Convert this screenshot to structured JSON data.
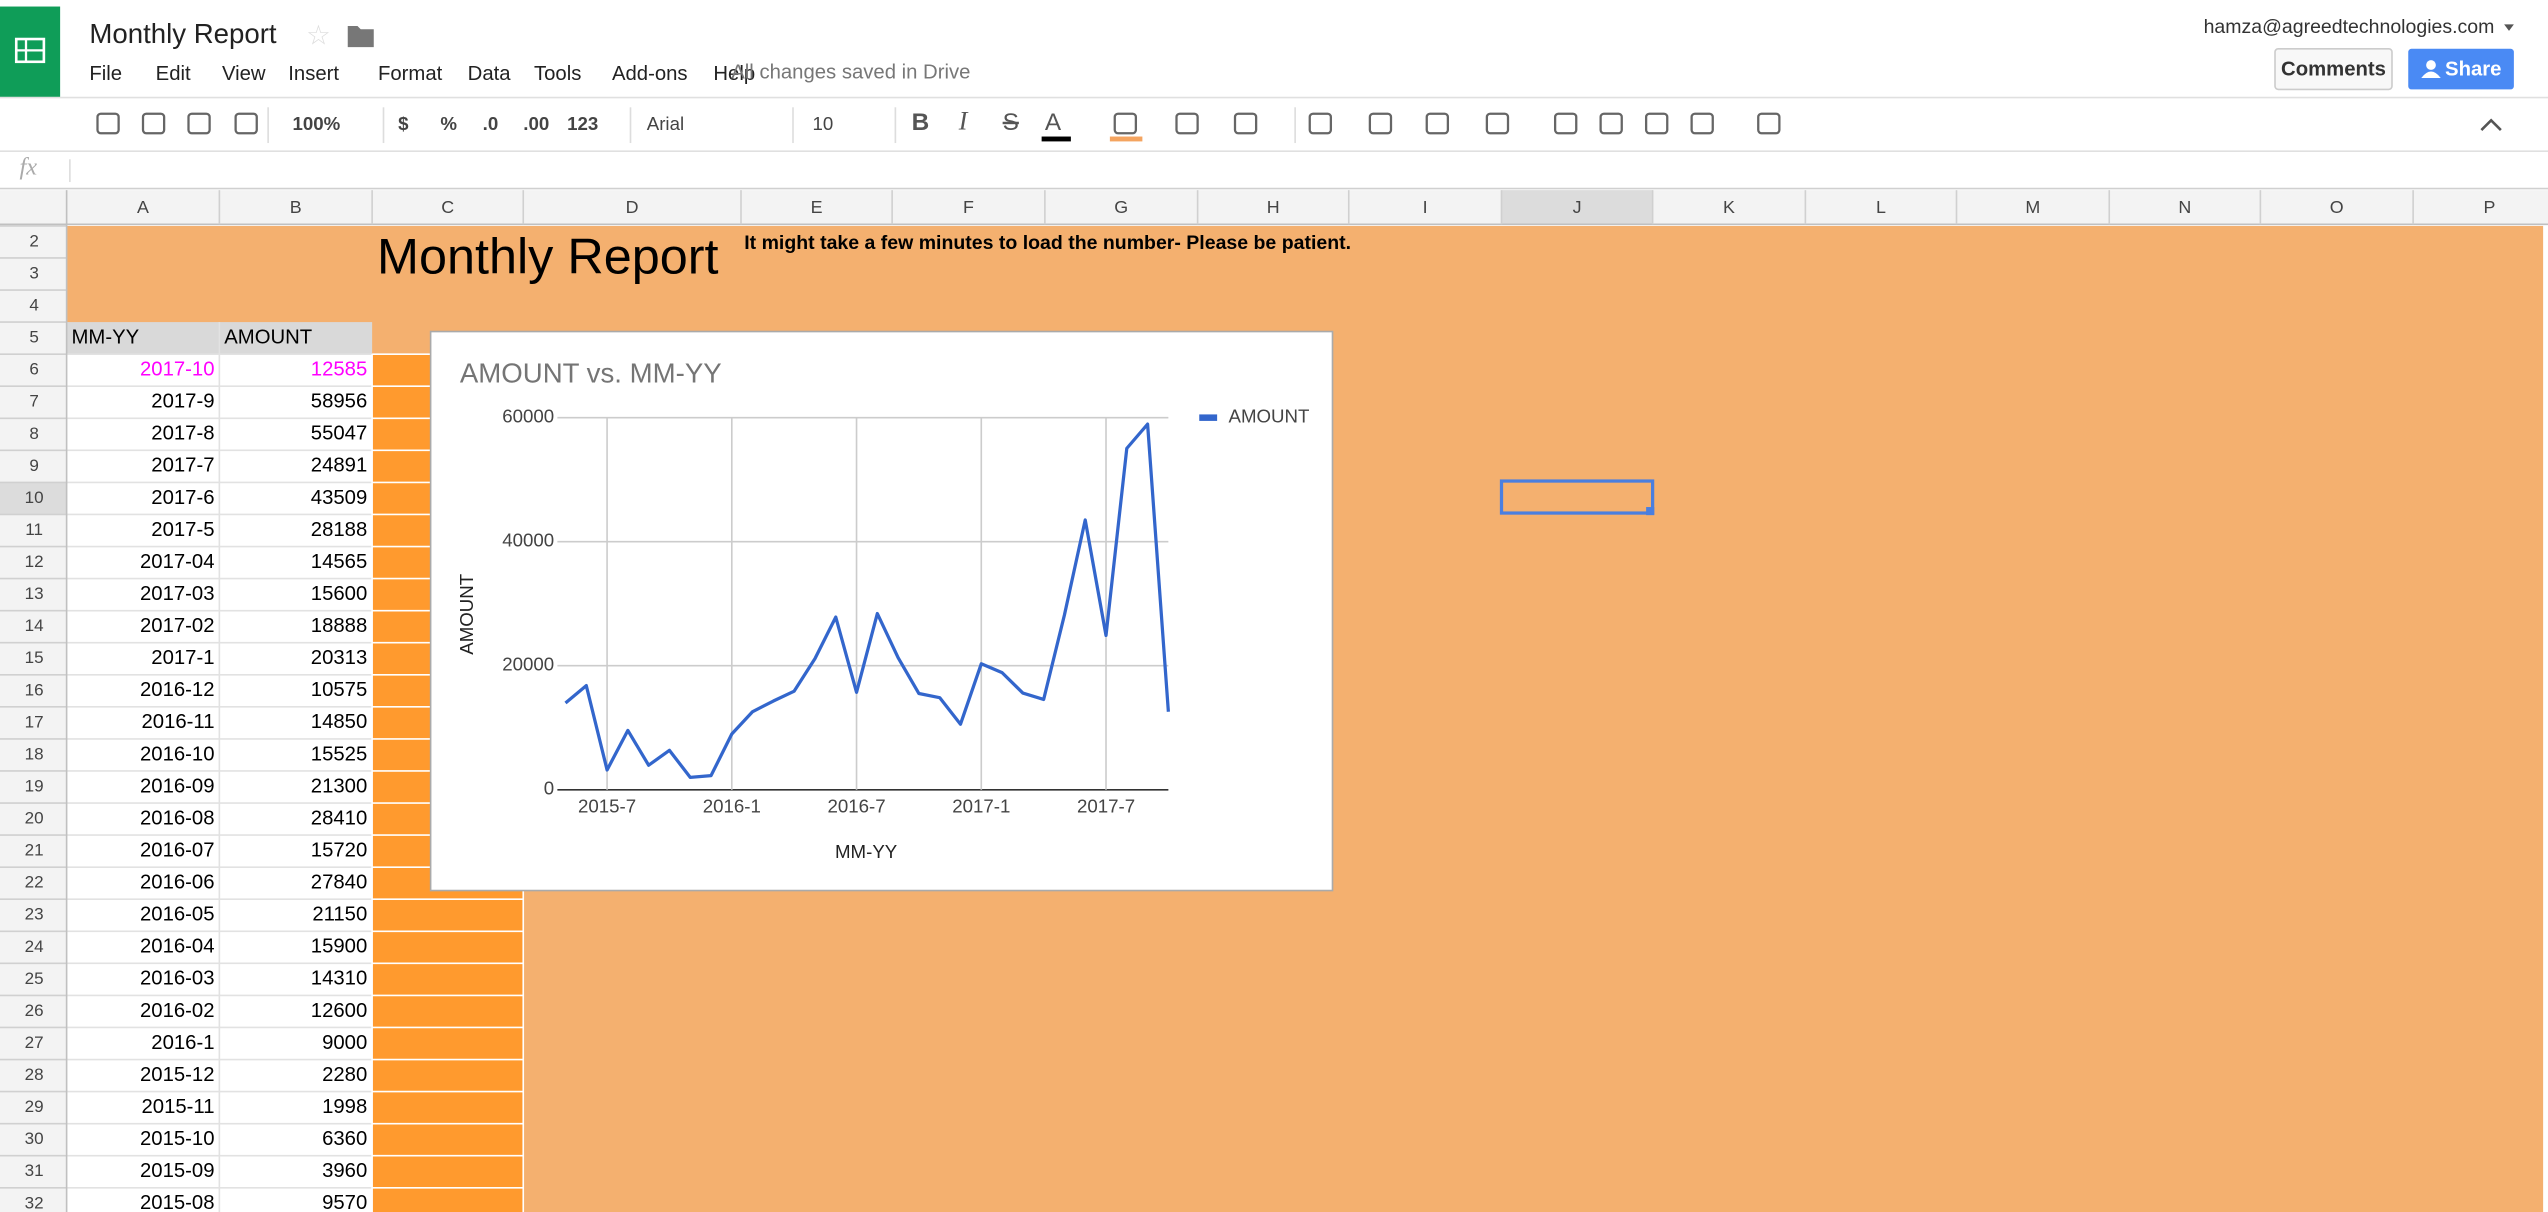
{
  "header": {
    "title": "Monthly Report",
    "account": "hamza@agreedtechnologies.com",
    "menu": [
      "File",
      "Edit",
      "View",
      "Insert",
      "Format",
      "Data",
      "Tools",
      "Add-ons",
      "Help"
    ],
    "save_status": "All changes saved in Drive",
    "comments": "Comments",
    "share": "Share"
  },
  "toolbar": {
    "zoom": "100%",
    "currency": "$",
    "percent": "%",
    "decrease_decimal": ".0",
    "increase_decimal": ".00",
    "number_format": "123",
    "font": "Arial",
    "font_size": "10",
    "bold": "B",
    "italic": "I",
    "strike": "S",
    "text_color": "A"
  },
  "formula_bar": {
    "label": "fx"
  },
  "sheet": {
    "columns": [
      "A",
      "B",
      "C",
      "D",
      "E",
      "F",
      "G",
      "H",
      "I",
      "J",
      "K",
      "L",
      "M",
      "N",
      "O",
      "P"
    ],
    "rows": [
      2,
      3,
      4,
      5,
      6,
      7,
      8,
      9,
      10,
      11,
      12,
      13,
      14,
      15,
      16,
      17,
      18,
      19,
      20,
      21,
      22,
      23,
      24,
      25,
      26,
      27,
      28,
      29,
      30,
      31,
      32
    ],
    "title": "Monthly Report",
    "note": "It might take a few minutes to load the number- Please be patient.",
    "table": {
      "headers": [
        "MM-YY",
        "AMOUNT"
      ],
      "highlight_rows": [
        0
      ],
      "highlight_color": "#ff00ff",
      "rows": [
        [
          "2017-10",
          12585
        ],
        [
          "2017-9",
          58956
        ],
        [
          "2017-8",
          55047
        ],
        [
          "2017-7",
          24891
        ],
        [
          "2017-6",
          43509
        ],
        [
          "2017-5",
          28188
        ],
        [
          "2017-04",
          14565
        ],
        [
          "2017-03",
          15600
        ],
        [
          "2017-02",
          18888
        ],
        [
          "2017-1",
          20313
        ],
        [
          "2016-12",
          10575
        ],
        [
          "2016-11",
          14850
        ],
        [
          "2016-10",
          15525
        ],
        [
          "2016-09",
          21300
        ],
        [
          "2016-08",
          28410
        ],
        [
          "2016-07",
          15720
        ],
        [
          "2016-06",
          27840
        ],
        [
          "2016-05",
          21150
        ],
        [
          "2016-04",
          15900
        ],
        [
          "2016-03",
          14310
        ],
        [
          "2016-02",
          12600
        ],
        [
          "2016-1",
          9000
        ],
        [
          "2015-12",
          2280
        ],
        [
          "2015-11",
          1998
        ],
        [
          "2015-10",
          6360
        ],
        [
          "2015-09",
          3960
        ],
        [
          "2015-08",
          9570
        ]
      ]
    }
  },
  "chart_data": {
    "type": "line",
    "title": "AMOUNT vs. MM-YY",
    "x_label": "MM-YY",
    "y_label": "AMOUNT",
    "x": [
      "2015-05",
      "2015-06",
      "2015-07",
      "2015-08",
      "2015-09",
      "2015-10",
      "2015-11",
      "2015-12",
      "2016-01",
      "2016-02",
      "2016-03",
      "2016-04",
      "2016-05",
      "2016-06",
      "2016-07",
      "2016-08",
      "2016-09",
      "2016-10",
      "2016-11",
      "2016-12",
      "2017-01",
      "2017-02",
      "2017-03",
      "2017-04",
      "2017-05",
      "2017-06",
      "2017-07",
      "2017-08",
      "2017-09",
      "2017-10"
    ],
    "series": [
      {
        "name": "AMOUNT",
        "color": "#3366cc",
        "values": [
          14000,
          16800,
          3200,
          9570,
          3960,
          6360,
          1998,
          2280,
          9000,
          12600,
          14310,
          15900,
          21150,
          27840,
          15720,
          28410,
          21300,
          15525,
          14850,
          10575,
          20313,
          18888,
          15600,
          14565,
          28188,
          43509,
          24891,
          55047,
          58956,
          12585
        ]
      }
    ],
    "xlim": [
      "2015-05",
      "2017-10"
    ],
    "xticks": [
      {
        "value": "2015-07",
        "label": "2015-7"
      },
      {
        "value": "2016-01",
        "label": "2016-1"
      },
      {
        "value": "2016-07",
        "label": "2016-7"
      },
      {
        "value": "2017-01",
        "label": "2017-1"
      },
      {
        "value": "2017-07",
        "label": "2017-7"
      }
    ],
    "ylim": [
      0,
      60000
    ],
    "yticks": [
      0,
      20000,
      40000,
      60000
    ],
    "grid": true,
    "legend": "right"
  }
}
